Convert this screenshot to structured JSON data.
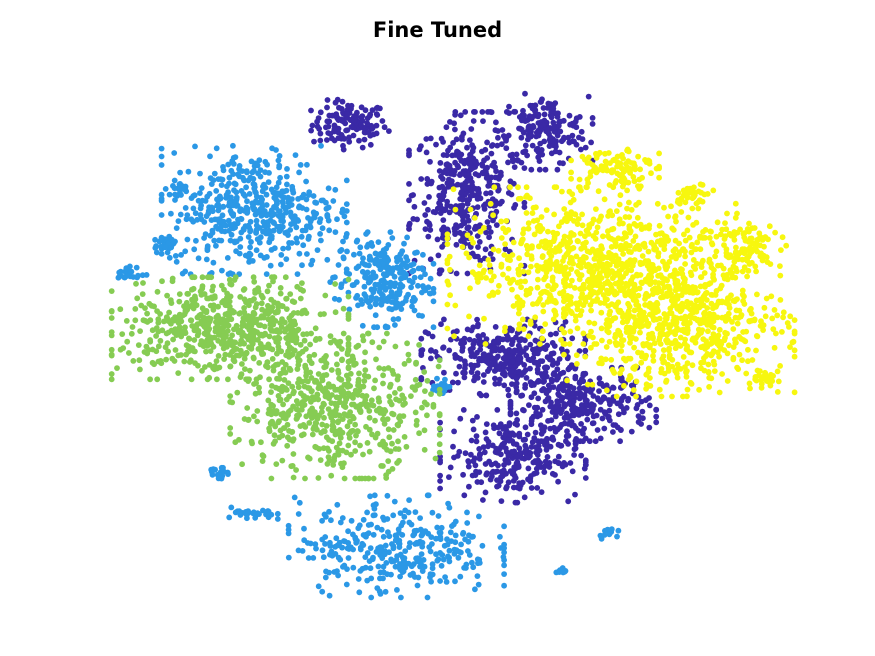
{
  "chart_data": {
    "type": "scatter",
    "title": "Fine Tuned",
    "xlabel": "",
    "ylabel": "",
    "axes_visible": false,
    "grid": false,
    "legend": "none",
    "xlim": [
      0,
      100
    ],
    "ylim": [
      0,
      100
    ],
    "series": [
      {
        "color": "#3a29a6",
        "clusters": [
          {
            "cx": 34.7,
            "cy": 87.1,
            "sx": 2.7,
            "sy": 2.1,
            "n": 120
          },
          {
            "cx": 51.7,
            "cy": 74.5,
            "sx": 3.8,
            "sy": 6.8,
            "n": 380
          },
          {
            "cx": 62.9,
            "cy": 85.8,
            "sx": 3.2,
            "sy": 3.2,
            "n": 180
          },
          {
            "cx": 57.0,
            "cy": 44.0,
            "sx": 5.4,
            "sy": 3.2,
            "n": 340
          },
          {
            "cx": 68.6,
            "cy": 35.3,
            "sx": 4.8,
            "sy": 3.1,
            "n": 280
          },
          {
            "cx": 58.4,
            "cy": 25.7,
            "sx": 4.8,
            "sy": 3.9,
            "n": 280
          }
        ]
      },
      {
        "color": "#2b98e6",
        "clusters": [
          {
            "cx": 20.9,
            "cy": 71.3,
            "sx": 6.1,
            "sy": 5.4,
            "n": 480
          },
          {
            "cx": 39.4,
            "cy": 58.4,
            "sx": 3.4,
            "sy": 4.0,
            "n": 250
          },
          {
            "cx": 41.5,
            "cy": 9.0,
            "sx": 7.1,
            "sy": 4.3,
            "n": 330
          },
          {
            "cx": 3.1,
            "cy": 59.4,
            "sx": 1.0,
            "sy": 0.7,
            "n": 20
          },
          {
            "cx": 7.8,
            "cy": 65.4,
            "sx": 0.9,
            "sy": 0.9,
            "n": 22
          },
          {
            "cx": 10.4,
            "cy": 75.3,
            "sx": 0.7,
            "sy": 0.7,
            "n": 16
          },
          {
            "cx": 15.7,
            "cy": 22.4,
            "sx": 0.8,
            "sy": 0.6,
            "n": 16
          },
          {
            "cx": 20.8,
            "cy": 14.9,
            "sx": 1.6,
            "sy": 0.6,
            "n": 28
          },
          {
            "cx": 48.1,
            "cy": 38.4,
            "sx": 0.7,
            "sy": 0.9,
            "n": 18
          },
          {
            "cx": 72.3,
            "cy": 11.5,
            "sx": 0.8,
            "sy": 0.5,
            "n": 12
          },
          {
            "cx": 65.4,
            "cy": 4.4,
            "sx": 0.5,
            "sy": 0.5,
            "n": 8
          }
        ]
      },
      {
        "color": "#86cc53",
        "clusters": [
          {
            "cx": 17.4,
            "cy": 49.4,
            "sx": 7.8,
            "sy": 4.3,
            "n": 620
          },
          {
            "cx": 32.6,
            "cy": 35.0,
            "sx": 6.9,
            "sy": 6.1,
            "n": 560
          }
        ]
      },
      {
        "color": "#f7f70f",
        "clusters": [
          {
            "cx": 69.8,
            "cy": 61.0,
            "sx": 9.5,
            "sy": 6.6,
            "n": 780
          },
          {
            "cx": 82.5,
            "cy": 50.4,
            "sx": 7.6,
            "sy": 6.2,
            "n": 650
          },
          {
            "cx": 73.2,
            "cy": 79.5,
            "sx": 2.9,
            "sy": 1.9,
            "n": 100
          },
          {
            "cx": 91.4,
            "cy": 64.7,
            "sx": 3.0,
            "sy": 2.7,
            "n": 90
          },
          {
            "cx": 84.7,
            "cy": 74.0,
            "sx": 0.9,
            "sy": 1.1,
            "n": 30
          },
          {
            "cx": 95.4,
            "cy": 40.1,
            "sx": 1.2,
            "sy": 1.3,
            "n": 28
          }
        ]
      }
    ]
  }
}
